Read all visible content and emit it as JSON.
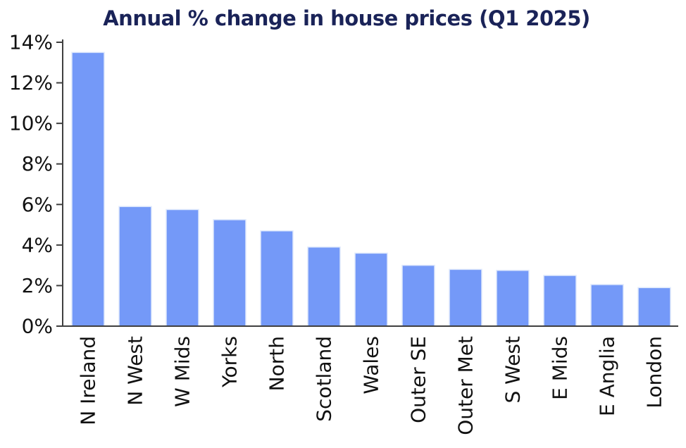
{
  "page": {
    "background_color": "#ffffff"
  },
  "chart_data": {
    "type": "bar",
    "title": "Annual % change in house prices (Q1 2025)",
    "categories": [
      "N Ireland",
      "N West",
      "W Mids",
      "Yorks",
      "North",
      "Scotland",
      "Wales",
      "Outer SE",
      "Outer Met",
      "S West",
      "E Mids",
      "E Anglia",
      "London"
    ],
    "values": [
      13.5,
      5.9,
      5.75,
      5.25,
      4.7,
      3.9,
      3.6,
      3.0,
      2.8,
      2.75,
      2.5,
      2.05,
      1.9
    ],
    "xlabel": "",
    "ylabel": "",
    "ylim": [
      0,
      14
    ],
    "ytick_step": 2,
    "ytick_suffix": "%",
    "grid": false,
    "legend_position": "none",
    "bar_color": "#7499F8",
    "bar_edge_color": "#DFE9FC",
    "axis_color": "#3F3F3F",
    "tick_label_color": "#111111",
    "title_color": "#1A2358"
  }
}
